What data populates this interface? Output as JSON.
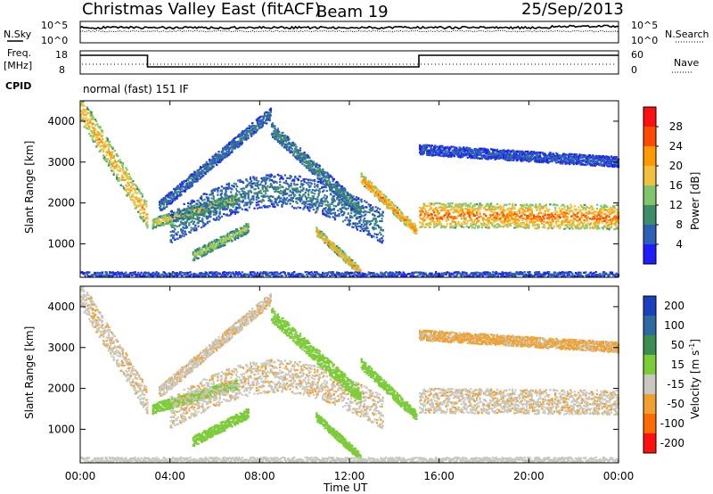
{
  "chart_data": {
    "type": "heatmap",
    "title": "Christmas Valley East (fitACF)",
    "beam_label": "Beam 19",
    "date": "25/Sep/2013",
    "mode": "normal (fast) 151 IF",
    "left_labels": {
      "nsky": "N.Sky",
      "freq": "Freq.",
      "freq_unit": "[MHz]",
      "cpid": "CPID"
    },
    "right_labels": {
      "nsearch": "N.Search",
      "nave": "Nave"
    },
    "noise_panel": {
      "left_ticks": [
        "10^5",
        "10^0"
      ],
      "right_ticks": [
        "10^5",
        "10^0"
      ]
    },
    "freq_panel": {
      "left_ticks": [
        "18",
        "8"
      ],
      "right_ticks": [
        "60",
        "0"
      ],
      "freq_segments_mhz": [
        [
          0,
          3.0,
          14
        ],
        [
          3.0,
          15.1,
          10
        ],
        [
          15.1,
          24,
          14
        ]
      ]
    },
    "xlabel": "Time UT",
    "x_ticks": [
      "00:00",
      "04:00",
      "08:00",
      "12:00",
      "16:00",
      "20:00",
      "00:00"
    ],
    "ylabel": "Slant Range [km]",
    "y_ticks": [
      "1000",
      "2000",
      "3000",
      "4000"
    ],
    "ylim": [
      180,
      4500
    ],
    "xlim_hours": [
      0,
      24
    ],
    "power_colorbar": {
      "label": "Power [dB]",
      "ticks": [
        "4",
        "8",
        "12",
        "16",
        "20",
        "24",
        "28"
      ],
      "colors": [
        "#1d1dff",
        "#2c5fb5",
        "#3d8c6a",
        "#7fc66b",
        "#f0c040",
        "#ff9a00",
        "#ff4a00",
        "#ff1010"
      ]
    },
    "velocity_colorbar": {
      "label": "Velocity [m s",
      "label_sup": "-1",
      "label_end": "]",
      "ticks": [
        "200",
        "100",
        "50",
        "15",
        "-15",
        "-50",
        "-100",
        "-200"
      ],
      "colors": [
        "#1a3fbf",
        "#2e6aa0",
        "#3a8e50",
        "#7ccc3a",
        "#c8c8c0",
        "#f0a030",
        "#ff6a00",
        "#ff1010"
      ]
    },
    "echo_bands": [
      {
        "name": "early-descending",
        "t0": 0.0,
        "t1": 3.0,
        "r0": 4300,
        "r1": 1650,
        "thick": 650,
        "power": 22,
        "velocity": -10
      },
      {
        "name": "morning-low",
        "t0": 3.2,
        "t1": 7.0,
        "r0": 1500,
        "r1": 2100,
        "thick": 250,
        "power": 18,
        "velocity": 40
      },
      {
        "name": "near-range-low",
        "t0": 5.0,
        "t1": 7.5,
        "r0": 700,
        "r1": 1400,
        "thick": 250,
        "power": 16,
        "velocity": 40
      },
      {
        "name": "dome",
        "t0": 4.0,
        "t1": 13.5,
        "r0": 1400,
        "r1": 1600,
        "thick": 800,
        "power": 9,
        "velocity": -10
      },
      {
        "name": "rising-upper",
        "t0": 3.5,
        "t1": 8.5,
        "r0": 1900,
        "r1": 4200,
        "thick": 300,
        "power": 8,
        "velocity": -10
      },
      {
        "name": "falling-upper",
        "t0": 8.5,
        "t1": 12.5,
        "r0": 3800,
        "r1": 1800,
        "thick": 350,
        "power": 10,
        "velocity": 30
      },
      {
        "name": "falling-low",
        "t0": 10.5,
        "t1": 12.5,
        "r0": 1300,
        "r1": 300,
        "thick": 200,
        "power": 22,
        "velocity": 40
      },
      {
        "name": "falling-mid",
        "t0": 12.5,
        "t1": 15.0,
        "r0": 2600,
        "r1": 1300,
        "thick": 250,
        "power": 24,
        "velocity": 40
      },
      {
        "name": "evening-main",
        "t0": 15.1,
        "t1": 24.0,
        "r0": 1700,
        "r1": 1650,
        "thick": 600,
        "power": 25,
        "velocity": -10
      },
      {
        "name": "evening-upper",
        "t0": 15.1,
        "t1": 24.0,
        "r0": 3300,
        "r1": 3000,
        "thick": 250,
        "power": 6,
        "velocity": -20
      },
      {
        "name": "ground-near",
        "t0": 0.0,
        "t1": 24.0,
        "r0": 250,
        "r1": 250,
        "thick": 120,
        "power": 6,
        "velocity": 0
      }
    ]
  }
}
